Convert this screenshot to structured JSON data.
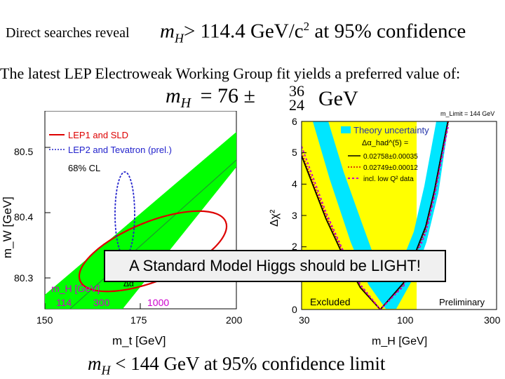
{
  "header": {
    "line1_small": "Direct searches reveal",
    "line1_var": "m",
    "line1_sub": "H",
    "line1_rest": "> 114.4 GeV/c",
    "line1_sup": "2",
    "line1_tail": " at 95% confidence",
    "line2": "The latest LEP Electroweak Working Group fit yields a preferred value of:",
    "fit_var": "m",
    "fit_sub": "H",
    "fit_eq": "= 76 ±",
    "fit_up": "36",
    "fit_down": "24",
    "fit_unit": "GeV"
  },
  "banner": "A Standard Model Higgs should be LIGHT!",
  "footer": {
    "var": "m",
    "sub": "H",
    "text": " < 144 GeV at 95% confidence limit"
  },
  "chart_data": [
    {
      "type": "line",
      "xlabel": "m_t [GeV]",
      "ylabel": "m_W [GeV]",
      "x_ticks": [
        "150",
        "175",
        "200"
      ],
      "y_ticks": [
        "80.3",
        "80.4",
        "80.5"
      ],
      "xlim": [
        150,
        200
      ],
      "ylim": [
        80.26,
        80.56
      ],
      "legend": [
        "LEP1 and SLD",
        "LEP2 and Tevatron (prel.)"
      ],
      "legend_note": "68% CL",
      "band_label": "m_H [GeV]",
      "band_ticks": [
        "114",
        "300",
        "1000"
      ],
      "delta_alpha_label": "Δα",
      "colors": {
        "band": "#00ff00",
        "lep1": "#dd0000",
        "lep2": "#2222cc",
        "note": "#cc00cc"
      },
      "ellipses": [
        {
          "series": "LEP1 and SLD",
          "center": [
            176.5,
            80.355
          ],
          "style": "solid"
        },
        {
          "series": "LEP2 and Tevatron (prel.)",
          "center": [
            172.5,
            80.415
          ],
          "style": "dotted"
        }
      ]
    },
    {
      "type": "line",
      "xscale": "log",
      "xlabel": "m_H [GeV]",
      "ylabel": "Δχ²",
      "x_ticks": [
        "30",
        "100",
        "300"
      ],
      "y_ticks": [
        "0",
        "1",
        "2",
        "3",
        "4",
        "5",
        "6"
      ],
      "xlim": [
        30,
        300
      ],
      "ylim": [
        0,
        6
      ],
      "excluded_region": [
        30,
        114.4
      ],
      "excluded_label": "Excluded",
      "preliminary_label": "Preliminary",
      "limit_label": "m_Limit = 144 GeV",
      "legend_title": "Theory uncertainty",
      "legend_sub": "Δα_had^(5) =",
      "legend": [
        "0.02758±0.00035",
        "0.02749±0.00012",
        "incl. low Q² data"
      ],
      "minimum": [
        76,
        0
      ],
      "colors": {
        "excluded": "#ffff00",
        "band": "#00e6ff",
        "line1": "#000000",
        "line2": "#cc0000",
        "line3": "#cc00cc"
      },
      "series": [
        {
          "name": "0.02758±0.00035",
          "x": [
            30,
            40,
            50,
            60,
            76,
            100,
            130,
            144,
            170
          ],
          "y": [
            4.9,
            2.9,
            1.6,
            0.7,
            0.0,
            0.85,
            2.65,
            3.8,
            6.1
          ]
        },
        {
          "name": "0.02749±0.00012",
          "x": [
            30,
            40,
            50,
            60,
            76,
            100,
            130,
            144,
            170
          ],
          "y": [
            5.0,
            3.0,
            1.7,
            0.75,
            0.0,
            0.8,
            2.55,
            3.7,
            6.0
          ]
        },
        {
          "name": "incl. low Q² data",
          "x": [
            30,
            40,
            50,
            60,
            76,
            100,
            130,
            144,
            170
          ],
          "y": [
            5.2,
            3.1,
            1.75,
            0.8,
            0.0,
            0.75,
            2.45,
            3.6,
            5.9
          ]
        }
      ]
    }
  ]
}
